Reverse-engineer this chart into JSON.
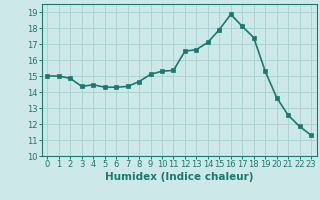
{
  "x": [
    0,
    1,
    2,
    3,
    4,
    5,
    6,
    7,
    8,
    9,
    10,
    11,
    12,
    13,
    14,
    15,
    16,
    17,
    18,
    19,
    20,
    21,
    22,
    23
  ],
  "y": [
    15.0,
    15.0,
    14.85,
    14.35,
    14.45,
    14.3,
    14.3,
    14.35,
    14.65,
    15.1,
    15.3,
    15.35,
    16.55,
    16.65,
    17.1,
    17.9,
    18.85,
    18.1,
    17.4,
    15.3,
    13.65,
    12.55,
    11.85,
    11.3
  ],
  "xlabel": "Humidex (Indice chaleur)",
  "ylabel": "",
  "xlim": [
    -0.5,
    23.5
  ],
  "ylim": [
    10,
    19.5
  ],
  "yticks": [
    10,
    11,
    12,
    13,
    14,
    15,
    16,
    17,
    18,
    19
  ],
  "xticks": [
    0,
    1,
    2,
    3,
    4,
    5,
    6,
    7,
    8,
    9,
    10,
    11,
    12,
    13,
    14,
    15,
    16,
    17,
    18,
    19,
    20,
    21,
    22,
    23
  ],
  "line_color": "#1a7a6e",
  "marker_color": "#1a7a6e",
  "bg_color": "#cce8e8",
  "grid_color": "#aacfcf",
  "axes_color": "#1a7a6e",
  "xlabel_fontsize": 7.5,
  "tick_fontsize": 6.0,
  "line_width": 1.2,
  "marker_size": 2.5
}
